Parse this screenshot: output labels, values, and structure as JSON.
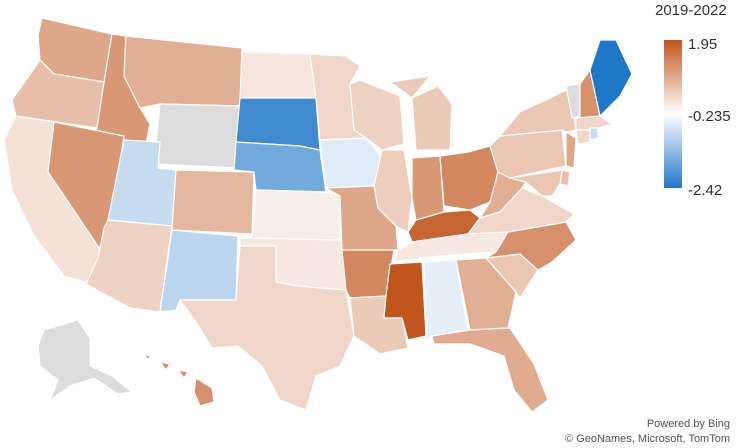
{
  "legend": {
    "title": "2019-2022",
    "max_label": "1.95",
    "mid_label": "-0.235",
    "min_label": "-2.42",
    "max_value": 1.95,
    "mid_value": -0.235,
    "min_value": -2.42,
    "color_max": "#c0561d",
    "color_mid": "#ffffff",
    "color_min": "#1f77c8",
    "no_data_color": "#dcdcdc"
  },
  "attribution": {
    "line1": "Powered by Bing",
    "line2": "© GeoNames, Microsoft, TomTom"
  },
  "states": {
    "WA": 0.9,
    "OR": 0.6,
    "CA": 0.15,
    "ID": 1.1,
    "NV": 1.1,
    "MT": 0.8,
    "WY": null,
    "UT": -0.8,
    "AZ": 0.35,
    "CO": 0.7,
    "NM": -0.9,
    "ND": 0.1,
    "SD": -2.1,
    "NE": -1.6,
    "KS": 0.0,
    "OK": 0.05,
    "TX": 0.3,
    "MN": 0.3,
    "IA": -0.55,
    "MO": 0.9,
    "AR": 1.3,
    "LA": 0.45,
    "WI": 0.35,
    "IL": 0.4,
    "MI": 0.45,
    "IN": 1.1,
    "OH": 1.3,
    "KY": 1.75,
    "TN": 0.05,
    "MS": 1.95,
    "AL": -0.5,
    "GA": 0.8,
    "FL": 0.85,
    "SC": 0.5,
    "NC": 1.2,
    "VA": 0.3,
    "WV": 0.8,
    "PA": 0.5,
    "NY": 0.5,
    "ME": -2.42,
    "NH": 1.2,
    "VT": null,
    "MA": 0.3,
    "CT": 0.3,
    "RI": -0.8,
    "NJ": 0.9,
    "DE": 0.6,
    "MD": 0.5,
    "AK": null,
    "HI": 1.2
  }
}
